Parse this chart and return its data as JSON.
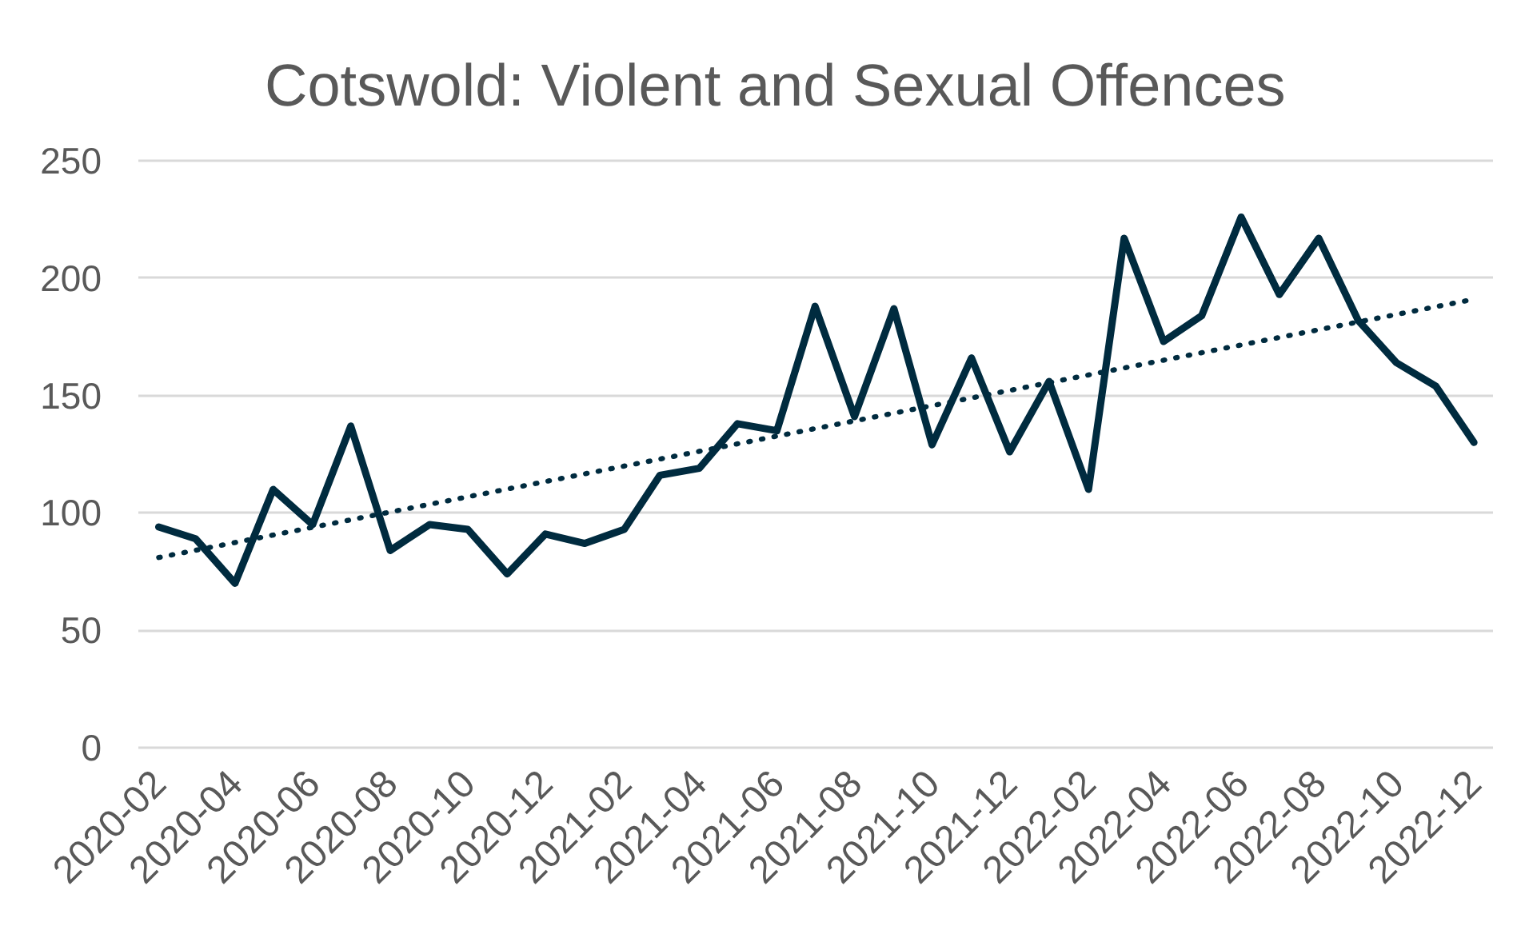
{
  "chart_data": {
    "type": "line",
    "title": "Cotswold: Violent and Sexual Offences",
    "x": [
      "2020-02",
      "2020-03",
      "2020-04",
      "2020-05",
      "2020-06",
      "2020-07",
      "2020-08",
      "2020-09",
      "2020-10",
      "2020-11",
      "2020-12",
      "2021-01",
      "2021-02",
      "2021-03",
      "2021-04",
      "2021-05",
      "2021-06",
      "2021-07",
      "2021-08",
      "2021-09",
      "2021-10",
      "2021-11",
      "2021-12",
      "2022-01",
      "2022-02",
      "2022-03",
      "2022-04",
      "2022-05",
      "2022-06",
      "2022-07",
      "2022-08",
      "2022-09",
      "2022-10",
      "2022-11",
      "2022-12"
    ],
    "xlim": [
      "2020-01-16",
      "2022-12-16"
    ],
    "xticks": [
      "2020-02",
      "2020-04",
      "2020-06",
      "2020-08",
      "2020-10",
      "2020-12",
      "2021-02",
      "2021-04",
      "2021-06",
      "2021-08",
      "2021-10",
      "2021-12",
      "2022-02",
      "2022-04",
      "2022-06",
      "2022-08",
      "2022-10",
      "2022-12"
    ],
    "ylim": [
      0,
      250
    ],
    "yticks": [
      0,
      50,
      100,
      150,
      200,
      250
    ],
    "grid": "y",
    "series": [
      {
        "color": "#002b3f",
        "line_style": "solid",
        "values": [
          94,
          89,
          70,
          110,
          95,
          137,
          84,
          95,
          93,
          74,
          91,
          87,
          93,
          116,
          119,
          138,
          135,
          188,
          141,
          187,
          129,
          166,
          126,
          156,
          110,
          217,
          173,
          184,
          226,
          193,
          217,
          182,
          164,
          154,
          130
        ]
      },
      {
        "type": "line",
        "color": "#002b3f",
        "line_style": "dotted",
        "x": [
          "2020-02",
          "2022-12"
        ],
        "values": [
          81,
          191
        ]
      }
    ]
  }
}
